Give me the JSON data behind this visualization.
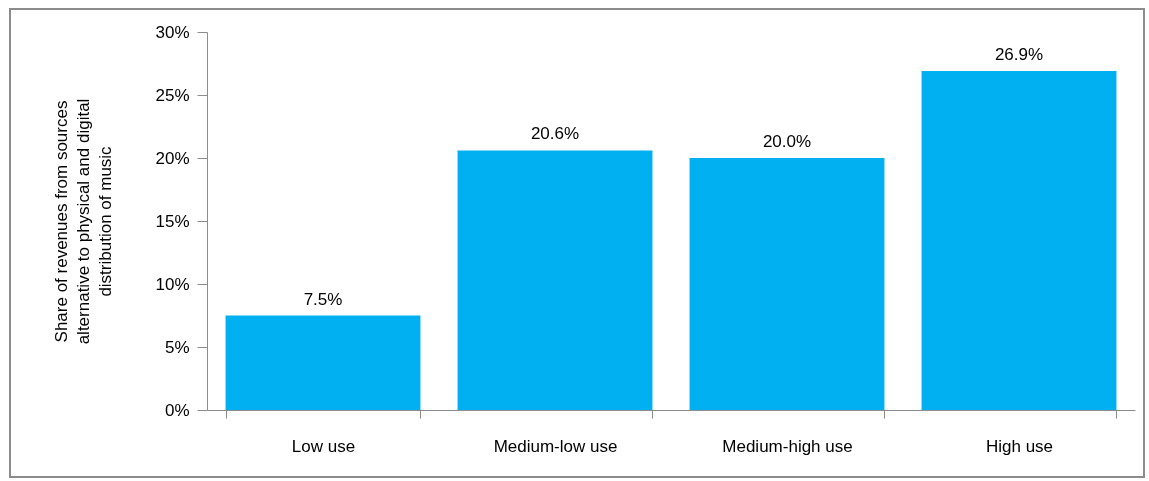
{
  "chart_data": {
    "type": "bar",
    "ylabel": "Share of revenues from sources\nalternative to physical and digital\ndistribution  of music",
    "categories": [
      "Low use",
      "Medium-low use",
      "Medium-high use",
      "High use"
    ],
    "values": [
      7.5,
      20.6,
      20.0,
      26.9
    ],
    "color": "#00b0f0",
    "value_labels": [
      "7.5%",
      "20.6%",
      "20.0%",
      "26.9%"
    ],
    "ylim": [
      0,
      30
    ],
    "yticks": [
      {
        "value": 0,
        "label": "0%"
      },
      {
        "value": 5,
        "label": "5%"
      },
      {
        "value": 10,
        "label": "10%"
      },
      {
        "value": 15,
        "label": "15%"
      },
      {
        "value": 20,
        "label": "20%"
      },
      {
        "value": 25,
        "label": "25%"
      },
      {
        "value": 30,
        "label": "30%"
      }
    ],
    "grid": false
  }
}
